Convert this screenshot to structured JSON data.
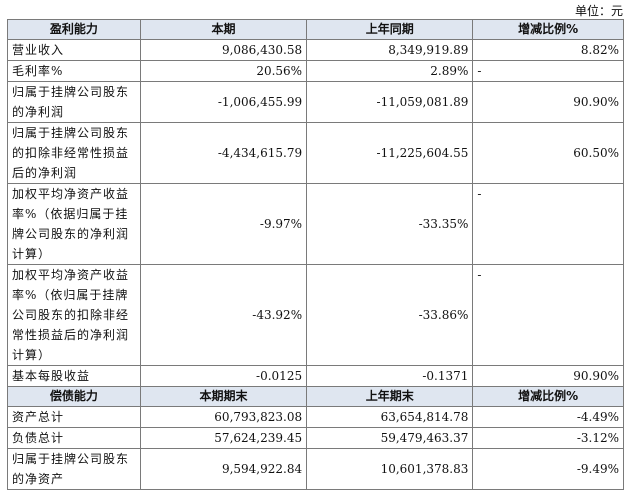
{
  "unit": "单位：元",
  "header1": [
    "盈利能力",
    "本期",
    "上年同期",
    "增减比例%"
  ],
  "rows1": [
    {
      "label": "营业收入",
      "current": "9,086,430.58",
      "previous": "8,349,919.89",
      "change": "8.82%"
    },
    {
      "label": "毛利率%",
      "current": "20.56%",
      "previous": "2.89%",
      "change": "-"
    },
    {
      "label": "归属于挂牌公司股东的净利润",
      "current": "-1,006,455.99",
      "previous": "-11,059,081.89",
      "change": "90.90%"
    },
    {
      "label": "归属于挂牌公司股东的扣除非经常性损益后的净利润",
      "current": "-4,434,615.79",
      "previous": "-11,225,604.55",
      "change": "60.50%"
    },
    {
      "label": "加权平均净资产收益率%（依据归属于挂牌公司股东的净利润计算）",
      "current": "-9.97%",
      "previous": "-33.35%",
      "change": "-"
    },
    {
      "label": "加权平均净资产收益率%（依归属于挂牌公司股东的扣除非经常性损益后的净利润计算）",
      "current": "-43.92%",
      "previous": "-33.86%",
      "change": "-"
    },
    {
      "label": "基本每股收益",
      "current": "-0.0125",
      "previous": "-0.1371",
      "change": "90.90%"
    }
  ],
  "header2": [
    "偿债能力",
    "本期期末",
    "上年期末",
    "增减比例%"
  ],
  "rows2": [
    {
      "label": "资产总计",
      "current": "60,793,823.08",
      "previous": "63,654,814.78",
      "change": "-4.49%"
    },
    {
      "label": "负债总计",
      "current": "57,624,239.45",
      "previous": "59,479,463.37",
      "change": "-3.12%"
    },
    {
      "label": "归属于挂牌公司股东的净资产",
      "current": "9,594,922.84",
      "previous": "10,601,378.83",
      "change": "-9.49%"
    }
  ]
}
